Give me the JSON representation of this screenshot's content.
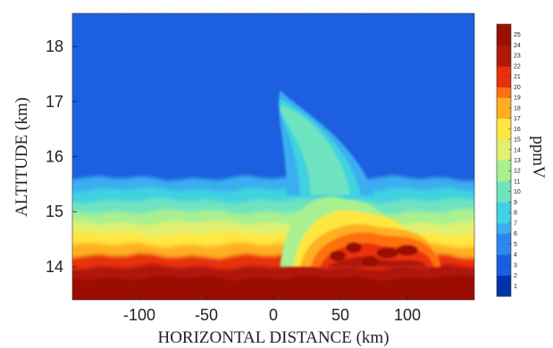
{
  "chart_data": {
    "type": "heatmap",
    "title": "",
    "xlabel": "HORIZONTAL DISTANCE (km)",
    "ylabel": "ALTITUDE (km)",
    "colorbar_label": "ppmV",
    "xlim": [
      -150,
      150
    ],
    "ylim": [
      13.4,
      18.6
    ],
    "x_ticks": [
      -100,
      -50,
      0,
      50,
      100
    ],
    "y_ticks": [
      14,
      15,
      16,
      17,
      18
    ],
    "colorbar_ticks": [
      1,
      2,
      3,
      4,
      5,
      6,
      7,
      8,
      9,
      10,
      11,
      12,
      13,
      14,
      15,
      16,
      17,
      18,
      19,
      20,
      21,
      22,
      23,
      24,
      25
    ],
    "colorbar_range": [
      0,
      26
    ],
    "colormap": [
      "#0033aa",
      "#1a5fe0",
      "#2f86f0",
      "#3aaef0",
      "#3fd2e0",
      "#6ee3c0",
      "#a8f090",
      "#e0f070",
      "#ffe640",
      "#ffb020",
      "#ff7010",
      "#e83010",
      "#b01808",
      "#9a1000"
    ],
    "background_value": 2,
    "layer_profile": {
      "altitude": [
        13.4,
        13.8,
        14.0,
        14.2,
        14.4,
        14.6,
        14.8,
        15.0,
        15.2,
        15.4,
        15.6,
        18.6
      ],
      "value": [
        26,
        24,
        21,
        18,
        16,
        14,
        12,
        10,
        8,
        6,
        3,
        2
      ]
    },
    "plume": {
      "base_x_range": [
        0,
        130
      ],
      "top_altitude": 17.2,
      "top_x": 5
    }
  }
}
